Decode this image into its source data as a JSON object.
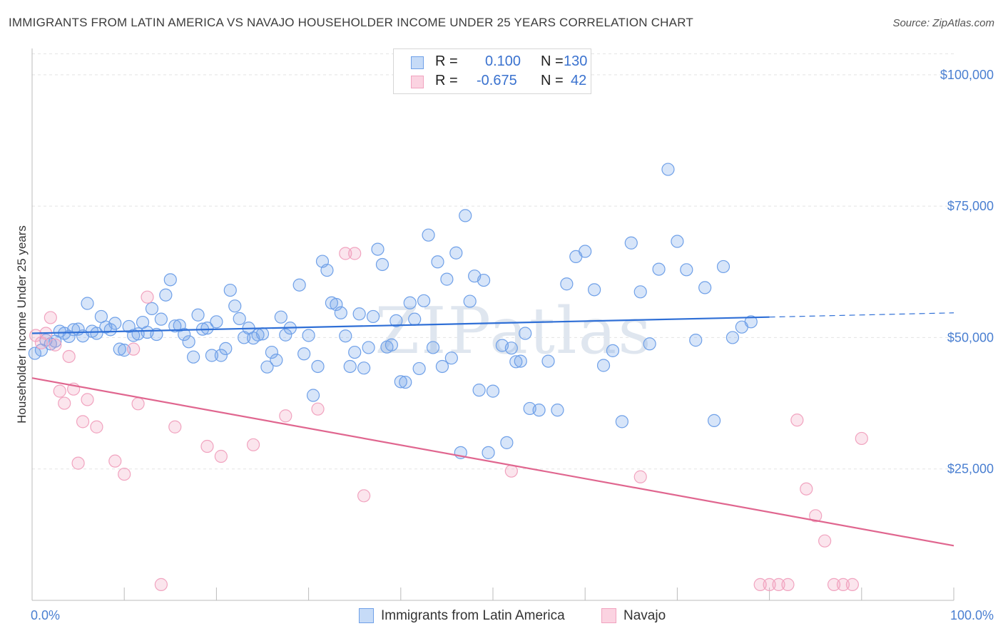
{
  "title": "IMMIGRANTS FROM LATIN AMERICA VS NAVAJO HOUSEHOLDER INCOME UNDER 25 YEARS CORRELATION CHART",
  "source": "Source: ZipAtlas.com",
  "watermark": "ZIPatlas",
  "legend": {
    "rows": [
      {
        "r_label": "R =",
        "r_value": "0.100",
        "n_label": "N =",
        "n_value": "130",
        "color": "#6fa0e8"
      },
      {
        "r_label": "R =",
        "r_value": "-0.675",
        "n_label": "N =",
        "n_value": "42",
        "color": "#f1a3bf"
      }
    ]
  },
  "bottom_legend": [
    {
      "label": "Immigrants from Latin America",
      "color": "#6fa0e8"
    },
    {
      "label": "Navajo",
      "color": "#f1a3bf"
    }
  ],
  "chart_data": {
    "type": "scatter",
    "title": "IMMIGRANTS FROM LATIN AMERICA VS NAVAJO HOUSEHOLDER INCOME UNDER 25 YEARS CORRELATION CHART",
    "xlabel": "",
    "ylabel": "Householder Income Under 25 years",
    "xlim": [
      0,
      100
    ],
    "ylim": [
      0,
      105000
    ],
    "x_tick_labels": [
      "0.0%",
      "100.0%"
    ],
    "y_ticks": [
      25000,
      50000,
      75000,
      100000
    ],
    "y_tick_labels": [
      "$25,000",
      "$50,000",
      "$75,000",
      "$100,000"
    ],
    "grid": true,
    "legend_position": "top-center",
    "series": [
      {
        "name": "Immigrants from Latin America",
        "color": "#6fa0e8",
        "trend": {
          "x": [
            0,
            80
          ],
          "y": [
            50800,
            53900
          ],
          "dash_to": [
            100,
            54700
          ]
        },
        "points": [
          [
            0.3,
            47000
          ],
          [
            1,
            47600
          ],
          [
            1.5,
            49500
          ],
          [
            2,
            48800
          ],
          [
            2.5,
            49300
          ],
          [
            3,
            51200
          ],
          [
            3.5,
            50800
          ],
          [
            4,
            50200
          ],
          [
            4.5,
            51500
          ],
          [
            5,
            51600
          ],
          [
            5.5,
            50300
          ],
          [
            6,
            56500
          ],
          [
            6.5,
            51200
          ],
          [
            7,
            50800
          ],
          [
            7.5,
            54000
          ],
          [
            8,
            52000
          ],
          [
            8.5,
            51500
          ],
          [
            9,
            52700
          ],
          [
            9.5,
            47800
          ],
          [
            10,
            47600
          ],
          [
            10.5,
            52100
          ],
          [
            11,
            50400
          ],
          [
            11.5,
            50700
          ],
          [
            12,
            52900
          ],
          [
            12.5,
            51000
          ],
          [
            13,
            55500
          ],
          [
            13.5,
            50600
          ],
          [
            14,
            53500
          ],
          [
            14.5,
            58100
          ],
          [
            15,
            61000
          ],
          [
            15.5,
            52200
          ],
          [
            16,
            52300
          ],
          [
            16.5,
            50600
          ],
          [
            17,
            49200
          ],
          [
            17.5,
            46300
          ],
          [
            18,
            54300
          ],
          [
            18.5,
            51600
          ],
          [
            19,
            51800
          ],
          [
            19.5,
            46600
          ],
          [
            20,
            53000
          ],
          [
            20.5,
            46600
          ],
          [
            21,
            47900
          ],
          [
            21.5,
            59000
          ],
          [
            22,
            56000
          ],
          [
            22.5,
            53600
          ],
          [
            23,
            50000
          ],
          [
            23.5,
            51800
          ],
          [
            24,
            49900
          ],
          [
            24.5,
            50500
          ],
          [
            25,
            50700
          ],
          [
            25.5,
            44400
          ],
          [
            26,
            47200
          ],
          [
            26.5,
            45700
          ],
          [
            27,
            53900
          ],
          [
            27.5,
            50500
          ],
          [
            28,
            51800
          ],
          [
            29,
            60000
          ],
          [
            29.5,
            46900
          ],
          [
            30,
            50400
          ],
          [
            30.5,
            39000
          ],
          [
            31,
            44500
          ],
          [
            31.5,
            64500
          ],
          [
            32,
            62800
          ],
          [
            32.5,
            56600
          ],
          [
            33,
            56300
          ],
          [
            33.5,
            54700
          ],
          [
            34,
            50300
          ],
          [
            34.5,
            44500
          ],
          [
            35,
            47200
          ],
          [
            35.5,
            54500
          ],
          [
            36,
            44200
          ],
          [
            36.5,
            48100
          ],
          [
            37,
            54000
          ],
          [
            37.5,
            66800
          ],
          [
            38,
            63900
          ],
          [
            38.5,
            48200
          ],
          [
            39,
            48600
          ],
          [
            39.5,
            53200
          ],
          [
            40,
            41600
          ],
          [
            40.5,
            41500
          ],
          [
            41,
            56600
          ],
          [
            41.5,
            53500
          ],
          [
            42,
            44100
          ],
          [
            42.5,
            57000
          ],
          [
            43,
            69500
          ],
          [
            43.5,
            48100
          ],
          [
            44,
            64400
          ],
          [
            44.5,
            44500
          ],
          [
            45,
            61100
          ],
          [
            45.5,
            46100
          ],
          [
            46,
            66100
          ],
          [
            46.5,
            28100
          ],
          [
            47,
            73200
          ],
          [
            47.5,
            56900
          ],
          [
            48,
            61700
          ],
          [
            48.5,
            40000
          ],
          [
            49,
            60900
          ],
          [
            49.5,
            28100
          ],
          [
            50,
            39800
          ],
          [
            51,
            48500
          ],
          [
            51.5,
            30000
          ],
          [
            52,
            48000
          ],
          [
            52.5,
            45400
          ],
          [
            53,
            45500
          ],
          [
            53.5,
            50800
          ],
          [
            54,
            36500
          ],
          [
            55,
            36200
          ],
          [
            56,
            45500
          ],
          [
            57,
            36200
          ],
          [
            58,
            60200
          ],
          [
            59,
            65400
          ],
          [
            60,
            66400
          ],
          [
            61,
            59100
          ],
          [
            62,
            44700
          ],
          [
            63,
            47500
          ],
          [
            64,
            34000
          ],
          [
            65,
            68000
          ],
          [
            66,
            58700
          ],
          [
            67,
            48800
          ],
          [
            68,
            63000
          ],
          [
            69,
            82000
          ],
          [
            70,
            68300
          ],
          [
            71,
            62900
          ],
          [
            72,
            49500
          ],
          [
            73,
            59500
          ],
          [
            74,
            34200
          ],
          [
            75,
            63500
          ],
          [
            76,
            50000
          ],
          [
            77,
            52000
          ],
          [
            78,
            53000
          ]
        ]
      },
      {
        "name": "Navajo",
        "color": "#f1a3bf",
        "trend": {
          "x": [
            0,
            100
          ],
          "y": [
            42300,
            10400
          ]
        },
        "points": [
          [
            0.4,
            50400
          ],
          [
            1,
            49000
          ],
          [
            1.5,
            50800
          ],
          [
            2,
            53800
          ],
          [
            2.5,
            48600
          ],
          [
            3,
            39800
          ],
          [
            3.5,
            37500
          ],
          [
            4,
            46400
          ],
          [
            4.5,
            40200
          ],
          [
            5,
            26100
          ],
          [
            5.5,
            34000
          ],
          [
            6,
            38200
          ],
          [
            7,
            33000
          ],
          [
            9,
            26500
          ],
          [
            10,
            24000
          ],
          [
            11,
            47800
          ],
          [
            11.5,
            37400
          ],
          [
            12.5,
            57700
          ],
          [
            14,
            3000
          ],
          [
            15.5,
            33000
          ],
          [
            19,
            29300
          ],
          [
            20.5,
            27400
          ],
          [
            24,
            29600
          ],
          [
            27.5,
            35100
          ],
          [
            31,
            36400
          ],
          [
            34,
            66000
          ],
          [
            35,
            66000
          ],
          [
            36,
            19900
          ],
          [
            52,
            24600
          ],
          [
            66,
            23500
          ],
          [
            79,
            3000
          ],
          [
            80,
            3000
          ],
          [
            81,
            3000
          ],
          [
            82,
            3000
          ],
          [
            83,
            34300
          ],
          [
            84,
            21200
          ],
          [
            85,
            16100
          ],
          [
            86,
            11300
          ],
          [
            87,
            3000
          ],
          [
            88,
            3000
          ],
          [
            89,
            3000
          ],
          [
            90,
            30800
          ]
        ]
      }
    ]
  }
}
